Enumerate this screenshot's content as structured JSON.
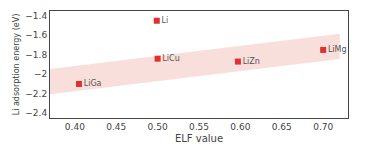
{
  "chart_data": {
    "type": "scatter",
    "x": [
      0.405,
      0.5,
      0.499,
      0.597,
      0.7
    ],
    "values": [
      -2.1,
      -1.84,
      -1.45,
      -1.87,
      -1.75
    ],
    "labels": [
      "LiGa",
      "LiCu",
      "Li",
      "LiZn",
      "LiMg"
    ],
    "color": "#e03030",
    "marker": "square",
    "band": {
      "x": [
        0.37,
        0.72
      ],
      "lower": [
        -2.2067,
        -1.8447
      ],
      "upper": [
        -1.9467,
        -1.5847
      ],
      "color": "#f5c0b8"
    },
    "xlabel": "ELF value",
    "ylabel": "Li adsorption energy (eV)",
    "xlim": [
      0.37,
      0.73
    ],
    "ylim": [
      -2.45,
      -1.35
    ],
    "xticks": [
      {
        "value": 0.4,
        "label": "0.40"
      },
      {
        "value": 0.45,
        "label": "0.45"
      },
      {
        "value": 0.5,
        "label": "0.50"
      },
      {
        "value": 0.55,
        "label": "0.55"
      },
      {
        "value": 0.6,
        "label": "0.60"
      },
      {
        "value": 0.65,
        "label": "0.65"
      },
      {
        "value": 0.7,
        "label": "0.70"
      }
    ],
    "yticks": [
      -2.4,
      -2.2,
      -2.0,
      -1.8,
      -1.6,
      -1.4
    ],
    "grid": false
  }
}
